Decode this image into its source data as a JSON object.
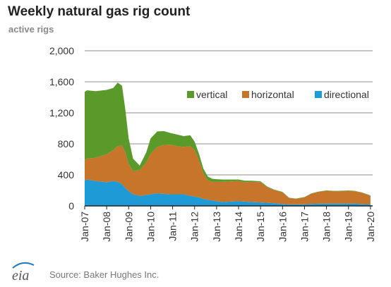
{
  "header": {
    "title": "Weekly natural gas rig count",
    "subtitle": "active rigs"
  },
  "footer": {
    "logo_text": "eia",
    "source": "Source: Baker Hughes Inc."
  },
  "colors": {
    "vertical": "#5a9a2b",
    "horizontal": "#c6752a",
    "directional": "#1e9bd7",
    "gridline": "#8c8c8c",
    "axis": "#222222"
  },
  "chart_data": {
    "type": "area",
    "stacked": true,
    "title": "Weekly natural gas rig count",
    "ylabel": "active rigs",
    "ylim": [
      0,
      2000
    ],
    "yticks": [
      0,
      400,
      800,
      1200,
      1600,
      2000
    ],
    "ytick_labels": [
      "0",
      "400",
      "800",
      "1,200",
      "1,600",
      "2,000"
    ],
    "xlim": [
      2007.0,
      2020.1
    ],
    "xticks": [
      2007,
      2008,
      2009,
      2010,
      2011,
      2012,
      2013,
      2014,
      2015,
      2016,
      2017,
      2018,
      2019,
      2020
    ],
    "xtick_labels": [
      "Jan-07",
      "Jan-08",
      "Jan-09",
      "Jan-10",
      "Jan-11",
      "Jan-12",
      "Jan-13",
      "Jan-14",
      "Jan-15",
      "Jan-16",
      "Jan-17",
      "Jan-18",
      "Jan-19",
      "Jan-20"
    ],
    "grid": true,
    "legend_position": "top-right",
    "x": [
      2007.0,
      2007.1,
      2007.5,
      2008.0,
      2008.3,
      2008.5,
      2008.7,
      2008.85,
      2009.0,
      2009.2,
      2009.5,
      2009.8,
      2010.0,
      2010.3,
      2010.6,
      2010.9,
      2011.2,
      2011.5,
      2011.8,
      2012.0,
      2012.2,
      2012.4,
      2012.6,
      2012.8,
      2013.0,
      2013.3,
      2013.6,
      2014.0,
      2014.3,
      2014.6,
      2015.0,
      2015.3,
      2015.6,
      2016.0,
      2016.3,
      2016.6,
      2017.0,
      2017.3,
      2017.6,
      2018.0,
      2018.3,
      2018.6,
      2019.0,
      2019.3,
      2019.6,
      2020.0
    ],
    "series": [
      {
        "name": "directional",
        "values": [
          330,
          340,
          320,
          305,
          320,
          310,
          280,
          230,
          190,
          150,
          130,
          140,
          150,
          160,
          155,
          150,
          150,
          150,
          130,
          120,
          110,
          90,
          80,
          70,
          60,
          50,
          55,
          60,
          55,
          50,
          45,
          40,
          35,
          25,
          20,
          20,
          20,
          25,
          28,
          30,
          30,
          30,
          30,
          28,
          25,
          20
        ]
      },
      {
        "name": "horizontal",
        "values": [
          260,
          270,
          300,
          360,
          400,
          460,
          500,
          460,
          350,
          300,
          330,
          420,
          520,
          600,
          630,
          640,
          620,
          610,
          640,
          600,
          480,
          330,
          250,
          240,
          250,
          260,
          260,
          260,
          250,
          260,
          260,
          200,
          170,
          150,
          80,
          70,
          90,
          130,
          150,
          165,
          160,
          160,
          165,
          160,
          145,
          110
        ]
      },
      {
        "name": "vertical",
        "values": [
          880,
          880,
          860,
          830,
          800,
          820,
          770,
          550,
          330,
          160,
          60,
          130,
          200,
          200,
          180,
          150,
          150,
          140,
          140,
          110,
          80,
          60,
          50,
          40,
          35,
          30,
          25,
          20,
          20,
          15,
          12,
          10,
          8,
          6,
          5,
          5,
          5,
          5,
          5,
          5,
          5,
          5,
          5,
          5,
          5,
          5
        ]
      }
    ]
  }
}
